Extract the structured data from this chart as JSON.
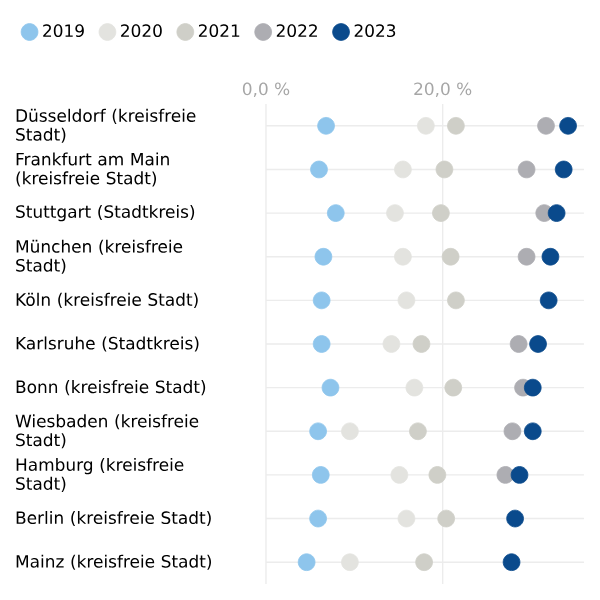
{
  "chart_data": {
    "type": "scatter",
    "orientation": "horizontal",
    "categories": [
      "Düsseldorf (kreisfreie Stadt)",
      "Frankfurt am Main (kreisfreie Stadt)",
      "Stuttgart (Stadtkreis)",
      "München (kreisfreie Stadt)",
      "Köln (kreisfreie Stadt)",
      "Karlsruhe (Stadtkreis)",
      "Bonn (kreisfreie Stadt)",
      "Wiesbaden (kreisfreie Stadt)",
      "Hamburg (kreisfreie Stadt)",
      "Berlin (kreisfreie Stadt)",
      "Mainz (kreisfreie Stadt)"
    ],
    "series": [
      {
        "name": "2019",
        "color": "#8ec5ec",
        "values": [
          6.8,
          6.0,
          7.9,
          6.5,
          6.3,
          6.3,
          7.3,
          5.9,
          6.2,
          5.9,
          4.6
        ]
      },
      {
        "name": "2020",
        "color": "#e3e3df",
        "values": [
          18.1,
          15.5,
          14.6,
          15.5,
          15.9,
          14.2,
          16.8,
          9.5,
          15.1,
          15.9,
          9.5
        ]
      },
      {
        "name": "2021",
        "color": "#cfcfc8",
        "values": [
          21.5,
          20.2,
          19.8,
          20.9,
          21.5,
          17.6,
          21.2,
          17.2,
          19.4,
          20.4,
          17.9
        ]
      },
      {
        "name": "2022",
        "color": "#adadb2",
        "values": [
          31.7,
          29.5,
          31.5,
          29.5,
          null,
          28.6,
          29.1,
          27.9,
          27.1,
          null,
          null
        ]
      },
      {
        "name": "2023",
        "color": "#0a4a8c",
        "values": [
          34.2,
          33.7,
          32.9,
          32.2,
          32.0,
          30.8,
          30.2,
          30.2,
          28.7,
          28.2,
          27.8
        ]
      }
    ],
    "xlim": [
      0,
      36
    ],
    "xticks": [
      {
        "value": 0,
        "label": "0,0 %"
      },
      {
        "value": 20,
        "label": "20,0 %"
      }
    ],
    "grid": true,
    "legend": "top",
    "marker": "circle"
  }
}
